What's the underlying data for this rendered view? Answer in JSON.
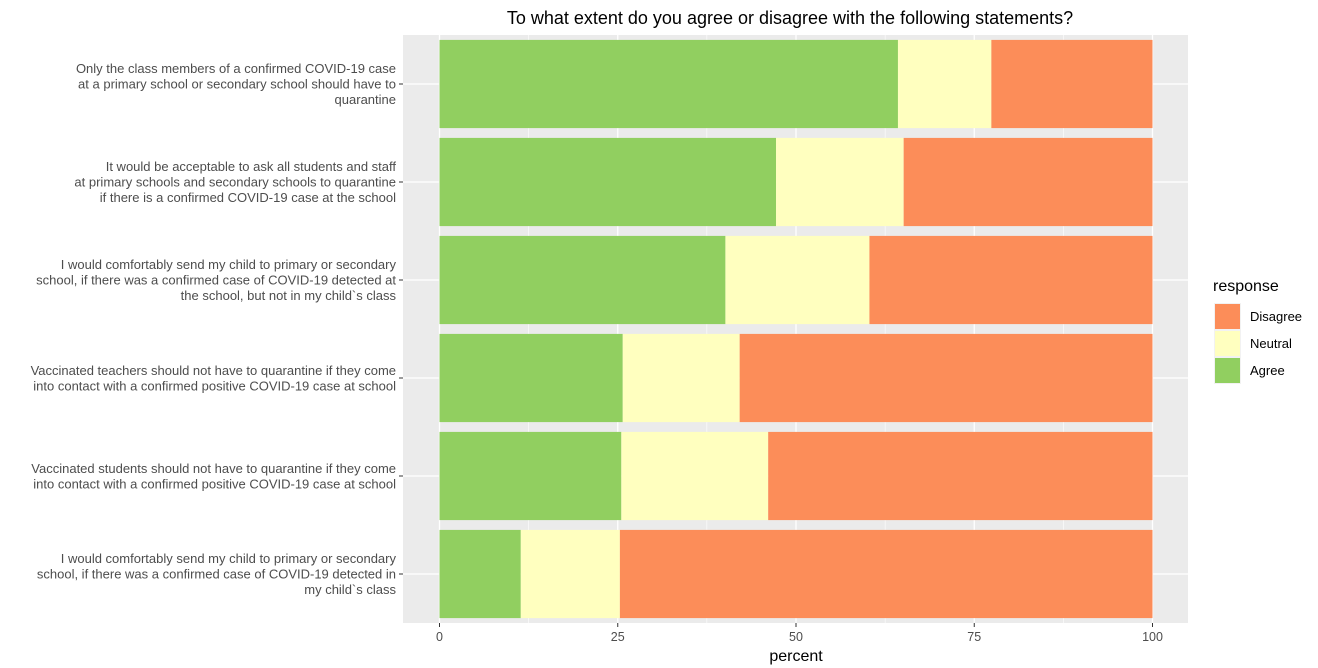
{
  "chart_data": {
    "type": "bar",
    "orientation": "horizontal",
    "stacked": true,
    "title": "To what extent do you agree or disagree with the following statements?",
    "xlabel": "percent",
    "ylabel": "",
    "xlim": [
      0,
      100
    ],
    "xticks": [
      0,
      25,
      50,
      75,
      100
    ],
    "grid": true,
    "categories": [
      [
        "Only the class members of a confirmed COVID-19 case",
        "at a primary school or secondary school should have to",
        "quarantine"
      ],
      [
        "It would be acceptable to ask all students and staff",
        "at primary schools and secondary schools to quarantine",
        "if there is a confirmed COVID-19 case at the school"
      ],
      [
        "I would comfortably send my child to primary or secondary",
        "school, if there was a confirmed case of COVID-19 detected at",
        "the school, but not in my child`s class"
      ],
      [
        "Vaccinated teachers should not have to quarantine if they come",
        "into contact with a confirmed positive COVID-19 case at school"
      ],
      [
        "Vaccinated students should not have to quarantine if they come",
        "into contact with a confirmed positive COVID-19 case at school"
      ],
      [
        "I would comfortably send my child to primary or secondary",
        "school, if there was a confirmed case of COVID-19 detected in",
        "my child`s class"
      ]
    ],
    "series": [
      {
        "name": "Agree",
        "color": "#91cf60",
        "values": [
          64.3,
          47.2,
          40.1,
          25.7,
          25.5,
          11.4
        ]
      },
      {
        "name": "Neutral",
        "color": "#ffffbf",
        "values": [
          13.1,
          17.9,
          20.2,
          16.4,
          20.6,
          13.9
        ]
      },
      {
        "name": "Disagree",
        "color": "#fc8d59",
        "values": [
          22.6,
          34.9,
          39.7,
          57.9,
          53.9,
          74.7
        ]
      }
    ],
    "legend": {
      "title": "response",
      "position": "right",
      "order": [
        "Disagree",
        "Neutral",
        "Agree"
      ]
    }
  }
}
